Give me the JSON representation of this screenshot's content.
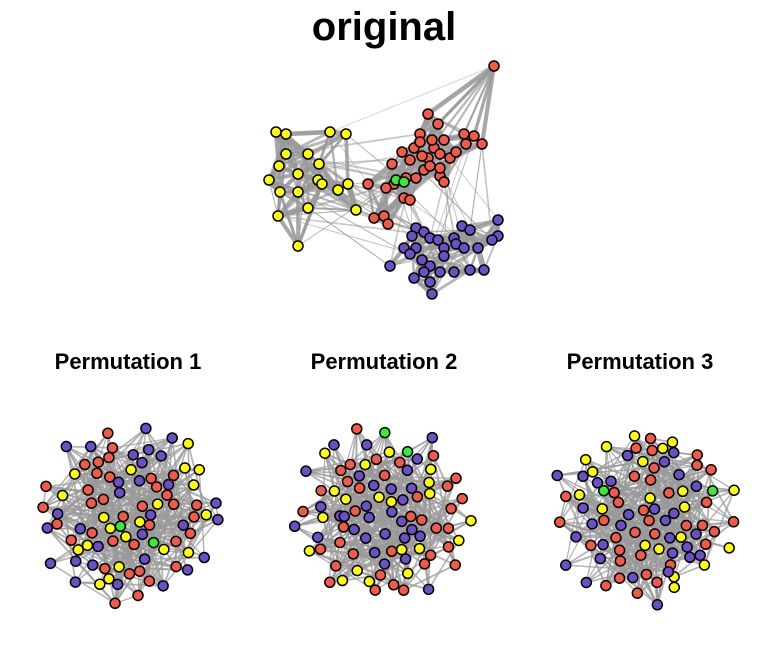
{
  "titles": {
    "main": "original",
    "panels": [
      "Permutation 1",
      "Permutation 2",
      "Permutation 3"
    ]
  },
  "colors": {
    "red": "#f25a47",
    "yellow": "#ffff00",
    "blue": "#6b4fc8",
    "green": "#33ee33",
    "edge": "#999999",
    "node_stroke": "#000000"
  },
  "original_communities": [
    {
      "color": "yellow",
      "nodes": 20
    },
    {
      "color": "red",
      "nodes": 36
    },
    {
      "color": "blue",
      "nodes": 30
    },
    {
      "color": "green",
      "nodes": 2
    }
  ]
}
